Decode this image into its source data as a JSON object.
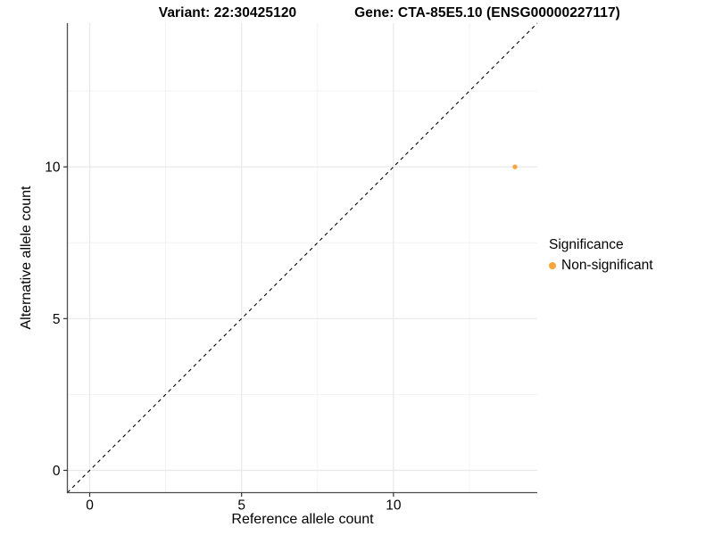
{
  "titles": {
    "variant": "Variant: 22:30425120",
    "gene": "Gene: CTA-85E5.10 (ENSG00000227117)"
  },
  "legend": {
    "title": "Significance",
    "items": [
      {
        "label": "Non-significant",
        "color": "#FAA43A"
      }
    ]
  },
  "colors": {
    "point": "#FAA43A",
    "axis_line": "#4d4d4d",
    "tick_mark": "#333333",
    "tick_label": "#000000",
    "grid_major": "#e8e8e8",
    "grid_minor": "#f2f2f2",
    "identity_line": "#000000",
    "background": "#ffffff"
  },
  "chart_data": {
    "type": "scatter",
    "title": "",
    "xlabel": "Reference allele count",
    "ylabel": "Alternative allele count",
    "xlim": [
      -0.735,
      14.735
    ],
    "ylim": [
      -0.735,
      14.735
    ],
    "x_ticks": [
      0,
      5,
      10
    ],
    "y_ticks": [
      0,
      5,
      10
    ],
    "x_minor_ticks": [
      2.5,
      7.5,
      12.5
    ],
    "y_minor_ticks": [
      2.5,
      7.5,
      12.5
    ],
    "grid": true,
    "legend_position": "right",
    "identity_line": {
      "slope": 1,
      "intercept": 0,
      "style": "dashed"
    },
    "series": [
      {
        "name": "Non-significant",
        "color": "#FAA43A",
        "points": [
          {
            "x": 14,
            "y": 10
          }
        ]
      }
    ]
  }
}
